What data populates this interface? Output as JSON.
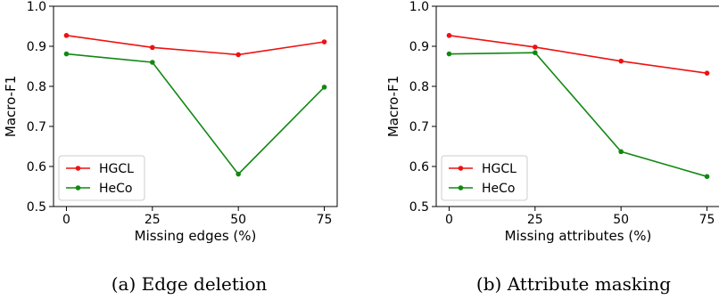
{
  "chart_data": [
    {
      "type": "line",
      "caption": "(a) Edge deletion",
      "xlabel": "Missing edges (%)",
      "ylabel": "Macro-F1",
      "x": [
        0,
        25,
        50,
        75
      ],
      "xticks": [
        "0",
        "25",
        "50",
        "75"
      ],
      "ylim": [
        0.5,
        1.0
      ],
      "yticks": [
        "0.5",
        "0.6",
        "0.7",
        "0.8",
        "0.9",
        "1.0"
      ],
      "legend_position": "lower-left",
      "grid": false,
      "series": [
        {
          "name": "HGCL",
          "color": "#ee1111",
          "values": [
            0.927,
            0.897,
            0.879,
            0.911
          ]
        },
        {
          "name": "HeCo",
          "color": "#118811",
          "values": [
            0.881,
            0.86,
            0.581,
            0.798
          ]
        }
      ]
    },
    {
      "type": "line",
      "caption": "(b) Attribute masking",
      "xlabel": "Missing attributes (%)",
      "ylabel": "Macro-F1",
      "x": [
        0,
        25,
        50,
        75
      ],
      "xticks": [
        "0",
        "25",
        "50",
        "75"
      ],
      "ylim": [
        0.5,
        1.0
      ],
      "yticks": [
        "0.5",
        "0.6",
        "0.7",
        "0.8",
        "0.9",
        "1.0"
      ],
      "legend_position": "lower-left",
      "grid": false,
      "series": [
        {
          "name": "HGCL",
          "color": "#ee1111",
          "values": [
            0.927,
            0.898,
            0.863,
            0.833
          ]
        },
        {
          "name": "HeCo",
          "color": "#118811",
          "values": [
            0.881,
            0.884,
            0.637,
            0.575
          ]
        }
      ]
    }
  ]
}
